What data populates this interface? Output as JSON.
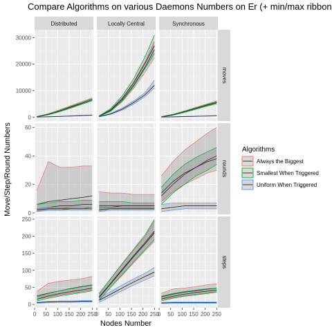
{
  "chart_data": {
    "type": "line",
    "title": "Compare Algorithms on various Daemons Numbers on Er (+ min/max ribbon)",
    "xlabel": "Nodes Number",
    "ylabel": "Move/Step/Round Numbers",
    "facet_columns": [
      "Distributed",
      "Locally Central",
      "Synchronous"
    ],
    "facet_rows": [
      "moves",
      "rounds",
      "steps"
    ],
    "x_ticks": [
      0,
      50,
      100,
      150,
      200,
      250
    ],
    "x_tick_labels": [
      "0",
      "50",
      "100",
      "150",
      "200",
      "250"
    ],
    "xlim": [
      0,
      255
    ],
    "rows": {
      "moves": {
        "ylim": [
          -1500,
          33000
        ],
        "y_ticks": [
          0,
          10000,
          20000,
          30000
        ]
      },
      "rounds": {
        "ylim": [
          -1,
          63
        ],
        "y_ticks": [
          0,
          20,
          40,
          60
        ]
      },
      "steps": {
        "ylim": [
          -10,
          258
        ],
        "y_ticks": [
          0,
          50,
          100,
          150,
          200,
          250
        ]
      }
    },
    "legend": {
      "title": "Algorithms",
      "placement": "right",
      "entries": [
        "Always the Biggest",
        "Smallest When Triggered",
        "Uniform When Triggered"
      ]
    },
    "colors": {
      "Always the Biggest": "#F8766D",
      "Smallest When Triggered": "#00BA38",
      "Uniform When Triggered": "#619CFF"
    },
    "x": [
      10,
      60,
      110,
      160,
      210,
      250
    ],
    "panels": [
      {
        "row": "moves",
        "col": "Distributed",
        "series": [
          {
            "name": "Always the Biggest",
            "mean": [
              150,
              1100,
              2500,
              4000,
              5600,
              6900
            ],
            "min": [
              80,
              900,
              2200,
              3600,
              5200,
              6500
            ],
            "max": [
              220,
              1300,
              2800,
              4400,
              6000,
              7300
            ]
          },
          {
            "name": "Smallest When Triggered",
            "mean": [
              140,
              1000,
              2300,
              3800,
              5300,
              6500
            ],
            "min": [
              70,
              850,
              2050,
              3450,
              4950,
              6100
            ],
            "max": [
              210,
              1150,
              2550,
              4150,
              5650,
              6900
            ]
          },
          {
            "name": "Uniform When Triggered",
            "mean": [
              20,
              120,
              260,
              420,
              600,
              750
            ],
            "min": [
              10,
              100,
              230,
              380,
              560,
              700
            ],
            "max": [
              30,
              140,
              290,
              460,
              640,
              800
            ]
          }
        ]
      },
      {
        "row": "moves",
        "col": "Locally Central",
        "series": [
          {
            "name": "Always the Biggest",
            "mean": [
              300,
              2500,
              6500,
              12000,
              19000,
              25500
            ],
            "min": [
              200,
              2100,
              5800,
              10800,
              17000,
              22500
            ],
            "max": [
              400,
              2900,
              7200,
              13200,
              21000,
              28500
            ]
          },
          {
            "name": "Smallest When Triggered",
            "mean": [
              320,
              2700,
              7000,
              13000,
              20500,
              27000
            ],
            "min": [
              200,
              2200,
              6000,
              11500,
              18500,
              24000
            ],
            "max": [
              450,
              3200,
              8000,
              14500,
              23000,
              31000
            ]
          },
          {
            "name": "Uniform When Triggered",
            "mean": [
              150,
              1200,
              3000,
              5500,
              8500,
              12000
            ],
            "min": [
              80,
              1000,
              2600,
              4900,
              7800,
              11000
            ],
            "max": [
              220,
              1400,
              3400,
              6100,
              9300,
              14000
            ]
          }
        ]
      },
      {
        "row": "moves",
        "col": "Synchronous",
        "series": [
          {
            "name": "Always the Biggest",
            "mean": [
              120,
              900,
              2100,
              3400,
              4700,
              5700
            ],
            "min": [
              60,
              750,
              1850,
              3100,
              4350,
              5300
            ],
            "max": [
              180,
              1050,
              2350,
              3700,
              5050,
              6100
            ]
          },
          {
            "name": "Smallest When Triggered",
            "mean": [
              110,
              850,
              2000,
              3250,
              4500,
              5400
            ],
            "min": [
              55,
              700,
              1750,
              2950,
              4150,
              5000
            ],
            "max": [
              170,
              1000,
              2250,
              3550,
              4850,
              5800
            ]
          },
          {
            "name": "Uniform When Triggered",
            "mean": [
              15,
              100,
              200,
              300,
              400,
              500
            ],
            "min": [
              8,
              80,
              170,
              260,
              360,
              450
            ],
            "max": [
              22,
              120,
              230,
              340,
              440,
              550
            ]
          }
        ]
      },
      {
        "row": "rounds",
        "col": "Distributed",
        "series": [
          {
            "name": "Always the Biggest",
            "mean": [
              6,
              8,
              9,
              10,
              11,
              12
            ],
            "min": [
              2,
              3,
              3,
              4,
              4,
              4
            ],
            "max": [
              16,
              36,
              32,
              32,
              33,
              33
            ]
          },
          {
            "name": "Smallest When Triggered",
            "mean": [
              3,
              4,
              5,
              5,
              6,
              6
            ],
            "min": [
              1,
              2,
              2,
              3,
              3,
              4
            ],
            "max": [
              6,
              7,
              8,
              8,
              9,
              9
            ]
          },
          {
            "name": "Uniform When Triggered",
            "mean": [
              2,
              3,
              3,
              3,
              3,
              3
            ],
            "min": [
              1,
              2,
              2,
              2,
              2,
              2
            ],
            "max": [
              3,
              4,
              4,
              4,
              4,
              4
            ]
          }
        ]
      },
      {
        "row": "rounds",
        "col": "Locally Central",
        "series": [
          {
            "name": "Always the Biggest",
            "mean": [
              5,
              5,
              5,
              5,
              5,
              5
            ],
            "min": [
              2,
              3,
              3,
              3,
              3,
              3
            ],
            "max": [
              15,
              14,
              14,
              13,
              13,
              13
            ]
          },
          {
            "name": "Smallest When Triggered",
            "mean": [
              4,
              4,
              5,
              5,
              5,
              5
            ],
            "min": [
              2,
              3,
              3,
              3,
              3,
              3
            ],
            "max": [
              8,
              8,
              8,
              7,
              7,
              7
            ]
          },
          {
            "name": "Uniform When Triggered",
            "mean": [
              2,
              3,
              3,
              3,
              3,
              3
            ],
            "min": [
              1,
              2,
              2,
              2,
              2,
              2
            ],
            "max": [
              4,
              4,
              4,
              4,
              4,
              4
            ]
          }
        ]
      },
      {
        "row": "rounds",
        "col": "Synchronous",
        "series": [
          {
            "name": "Always the Biggest",
            "mean": [
              14,
              22,
              28,
              32,
              36,
              38
            ],
            "min": [
              8,
              15,
              20,
              24,
              28,
              30
            ],
            "max": [
              26,
              36,
              44,
              50,
              56,
              60
            ]
          },
          {
            "name": "Smallest When Triggered",
            "mean": [
              12,
              20,
              27,
              32,
              37,
              40
            ],
            "min": [
              6,
              14,
              20,
              26,
              30,
              34
            ],
            "max": [
              18,
              27,
              34,
              39,
              43,
              46
            ]
          },
          {
            "name": "Uniform When Triggered",
            "mean": [
              3,
              4,
              5,
              5,
              5,
              5
            ],
            "min": [
              1,
              2,
              3,
              3,
              3,
              3
            ],
            "max": [
              6,
              7,
              7,
              7,
              7,
              7
            ]
          }
        ]
      },
      {
        "row": "steps",
        "col": "Distributed",
        "series": [
          {
            "name": "Always the Biggest",
            "mean": [
              25,
              33,
              40,
              47,
              53,
              57
            ],
            "min": [
              15,
              22,
              28,
              33,
              38,
              42
            ],
            "max": [
              38,
              62,
              68,
              72,
              76,
              82
            ]
          },
          {
            "name": "Smallest When Triggered",
            "mean": [
              15,
              25,
              32,
              38,
              43,
              48
            ],
            "min": [
              10,
              18,
              25,
              30,
              35,
              40
            ],
            "max": [
              22,
              32,
              40,
              46,
              52,
              56
            ]
          },
          {
            "name": "Uniform When Triggered",
            "mean": [
              5,
              7,
              8,
              8,
              9,
              9
            ],
            "min": [
              3,
              5,
              6,
              6,
              7,
              7
            ],
            "max": [
              7,
              9,
              10,
              10,
              11,
              11
            ]
          }
        ]
      },
      {
        "row": "steps",
        "col": "Locally Central",
        "series": [
          {
            "name": "Always the Biggest",
            "mean": [
              20,
              60,
              100,
              140,
              178,
              210
            ],
            "min": [
              12,
              50,
              85,
              122,
              158,
              185
            ],
            "max": [
              30,
              75,
              118,
              160,
              200,
              245
            ]
          },
          {
            "name": "Smallest When Triggered",
            "mean": [
              22,
              62,
              103,
              143,
              182,
              215
            ],
            "min": [
              12,
              50,
              88,
              125,
              162,
              190
            ],
            "max": [
              32,
              76,
              120,
              162,
              205,
              250
            ]
          },
          {
            "name": "Uniform When Triggered",
            "mean": [
              12,
              30,
              48,
              66,
              82,
              95
            ],
            "min": [
              6,
              22,
              40,
              57,
              72,
              84
            ],
            "max": [
              18,
              38,
              57,
              75,
              92,
              108
            ]
          }
        ]
      },
      {
        "row": "steps",
        "col": "Synchronous",
        "series": [
          {
            "name": "Always the Biggest",
            "mean": [
              22,
              30,
              36,
              40,
              45,
              48
            ],
            "min": [
              14,
              20,
              25,
              30,
              34,
              37
            ],
            "max": [
              32,
              45,
              48,
              52,
              58,
              60
            ]
          },
          {
            "name": "Smallest When Triggered",
            "mean": [
              16,
              24,
              30,
              35,
              39,
              42
            ],
            "min": [
              10,
              18,
              24,
              28,
              32,
              36
            ],
            "max": [
              24,
              32,
              38,
              42,
              46,
              48
            ]
          },
          {
            "name": "Uniform When Triggered",
            "mean": [
              4,
              5,
              5,
              5,
              5,
              5
            ],
            "min": [
              2,
              3,
              3,
              3,
              3,
              3
            ],
            "max": [
              6,
              7,
              7,
              7,
              7,
              7
            ]
          }
        ]
      }
    ]
  }
}
